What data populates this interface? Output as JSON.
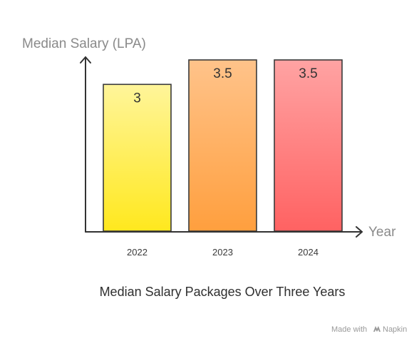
{
  "chart_data": {
    "type": "bar",
    "categories": [
      "2022",
      "2023",
      "2024"
    ],
    "values": [
      3,
      3.5,
      3.5
    ],
    "data_labels": [
      "3",
      "3.5",
      "3.5"
    ],
    "ylabel": "Median Salary (LPA)",
    "xlabel": "Year",
    "caption": "Median Salary Packages Over Three Years",
    "ylim": [
      0,
      3.5
    ],
    "grid": false,
    "legend": "none",
    "bar_colors": [
      {
        "top": "#fff59a",
        "bottom": "#ffe81e",
        "stroke": "#3a3a3a"
      },
      {
        "top": "#ffc38a",
        "bottom": "#ff9f3e",
        "stroke": "#3a3a3a"
      },
      {
        "top": "#ffa3a3",
        "bottom": "#ff6262",
        "stroke": "#3a3a3a"
      }
    ],
    "axis_color": "#333333"
  },
  "credit": {
    "text": "Made with",
    "brand": "Napkin",
    "icon": "napkin-logo-icon"
  }
}
